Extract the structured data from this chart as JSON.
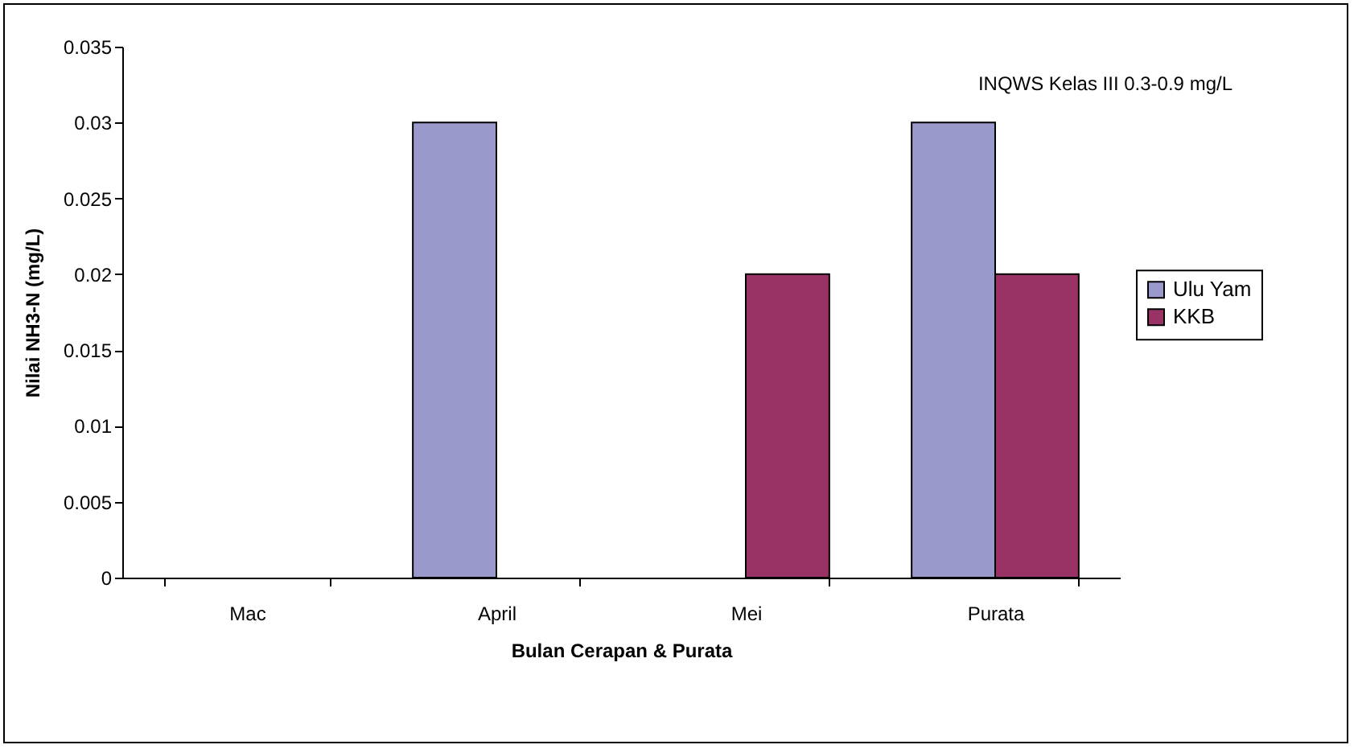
{
  "chart_data": {
    "type": "bar",
    "xlabel": "Bulan Cerapan & Purata",
    "ylabel": "Nilai NH3-N (mg/L)",
    "categories": [
      "Mac",
      "April",
      "Mei",
      "Purata"
    ],
    "series": [
      {
        "name": "Ulu Yam",
        "color": "#9999cc",
        "values": [
          null,
          0.03,
          null,
          0.03
        ]
      },
      {
        "name": "KKB",
        "color": "#993366",
        "values": [
          null,
          null,
          0.02,
          0.02
        ]
      }
    ],
    "ylim": [
      0,
      0.035
    ],
    "yticks": [
      0,
      0.005,
      0.01,
      0.015,
      0.02,
      0.025,
      0.03,
      0.035
    ],
    "annotations": [
      "INQWS Kelas III 0.3-0.9 mg/L"
    ],
    "grid": false,
    "legend": "right"
  }
}
